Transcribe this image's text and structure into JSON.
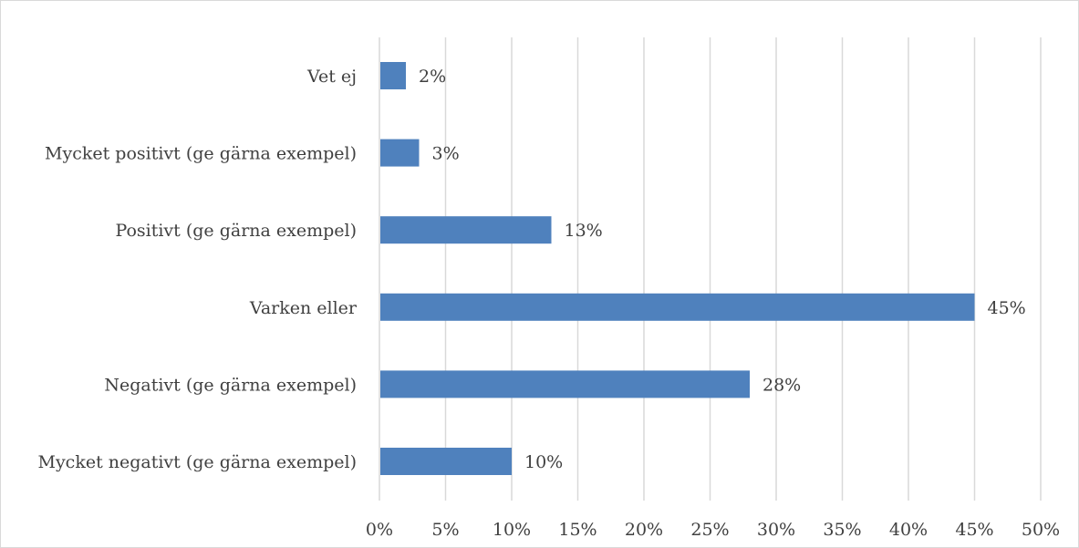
{
  "chart_data": {
    "type": "bar",
    "orientation": "horizontal",
    "categories": [
      "Vet ej",
      "Mycket positivt (ge gärna exempel)",
      "Positivt (ge gärna exempel)",
      "Varken eller",
      "Negativt (ge gärna exempel)",
      "Mycket negativt (ge gärna exempel)"
    ],
    "values": [
      2,
      3,
      13,
      45,
      28,
      10
    ],
    "data_labels": [
      "2%",
      "3%",
      "13%",
      "45%",
      "28%",
      "10%"
    ],
    "x_ticks": [
      "0%",
      "5%",
      "10%",
      "15%",
      "20%",
      "25%",
      "30%",
      "35%",
      "40%",
      "45%",
      "50%"
    ],
    "xlim": [
      0,
      50
    ],
    "xunit": "%",
    "grid": "vertical",
    "legend": "none",
    "bar_color": "#4f81bd",
    "grid_color": "#d9d9d9",
    "text_color": "#404040"
  }
}
